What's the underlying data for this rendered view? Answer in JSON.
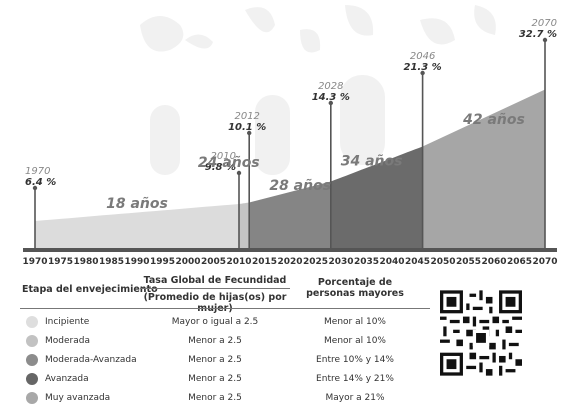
{
  "chart_data": {
    "type": "area",
    "x_ticks": [
      1970,
      1975,
      1980,
      1985,
      1990,
      1995,
      2000,
      2005,
      2010,
      2015,
      2020,
      2025,
      2030,
      2035,
      2040,
      2045,
      2050,
      2055,
      2060,
      2065,
      2070
    ],
    "series": [
      {
        "x": 1970,
        "y": 6.4
      },
      {
        "x": 2010,
        "y": 9.8
      },
      {
        "x": 2012,
        "y": 10.1
      },
      {
        "x": 2028,
        "y": 14.3
      },
      {
        "x": 2046,
        "y": 21.3
      },
      {
        "x": 2070,
        "y": 32.7
      }
    ],
    "stages": [
      {
        "from": 1970,
        "to": 2010,
        "color": "#dcdcdc"
      },
      {
        "from": 2010,
        "to": 2012,
        "color": "#c4c4c4"
      },
      {
        "from": 2012,
        "to": 2028,
        "color": "#858585"
      },
      {
        "from": 2028,
        "to": 2046,
        "color": "#6b6b6b"
      },
      {
        "from": 2046,
        "to": 2070,
        "color": "#a6a6a6"
      }
    ],
    "annotations": [
      {
        "year": "1970",
        "value": "6.4 %",
        "x": 1970
      },
      {
        "year": "2010",
        "value": "9.8 %",
        "x": 2010
      },
      {
        "year": "2012",
        "value": "10.1 %",
        "x": 2012
      },
      {
        "year": "2028",
        "value": "14.3 %",
        "x": 2028
      },
      {
        "year": "2046",
        "value": "21.3 %",
        "x": 2046
      },
      {
        "year": "2070",
        "value": "32.7 %",
        "x": 2070
      }
    ],
    "durations": [
      {
        "label": "18 años",
        "x": 1990,
        "level": 9
      },
      {
        "label": "24 años",
        "x": 2008,
        "level": 17.2
      },
      {
        "label": "28 años",
        "x": 2022,
        "level": 12.6
      },
      {
        "label": "34 años",
        "x": 2036,
        "level": 17.5
      },
      {
        "label": "42 años",
        "x": 2060,
        "level": 25.8
      }
    ]
  },
  "table": {
    "headers": {
      "stage": "Etapa del envejecimiento",
      "tgf_line1": "Tasa Global de Fecundidad",
      "tgf_line2": "(Promedio de hijas(os) por mujer)",
      "pct": "Porcentaje de personas mayores"
    },
    "rows": [
      {
        "stage": "Incipiente",
        "tgf": "Mayor o igual a 2.5",
        "pct": "Menor al 10%",
        "color": "#dedede"
      },
      {
        "stage": "Moderada",
        "tgf": "Menor a 2.5",
        "pct": "Menor al 10%",
        "color": "#c2c2c2"
      },
      {
        "stage": "Moderada-Avanzada",
        "tgf": "Menor a 2.5",
        "pct": "Entre 10% y 14%",
        "color": "#8c8c8c"
      },
      {
        "stage": "Avanzada",
        "tgf": "Menor a 2.5",
        "pct": "Entre 14% y 21%",
        "color": "#666666"
      },
      {
        "stage": "Muy avanzada",
        "tgf": "Menor a 2.5",
        "pct": "Mayor a 21%",
        "color": "#a8a8a8"
      }
    ]
  }
}
